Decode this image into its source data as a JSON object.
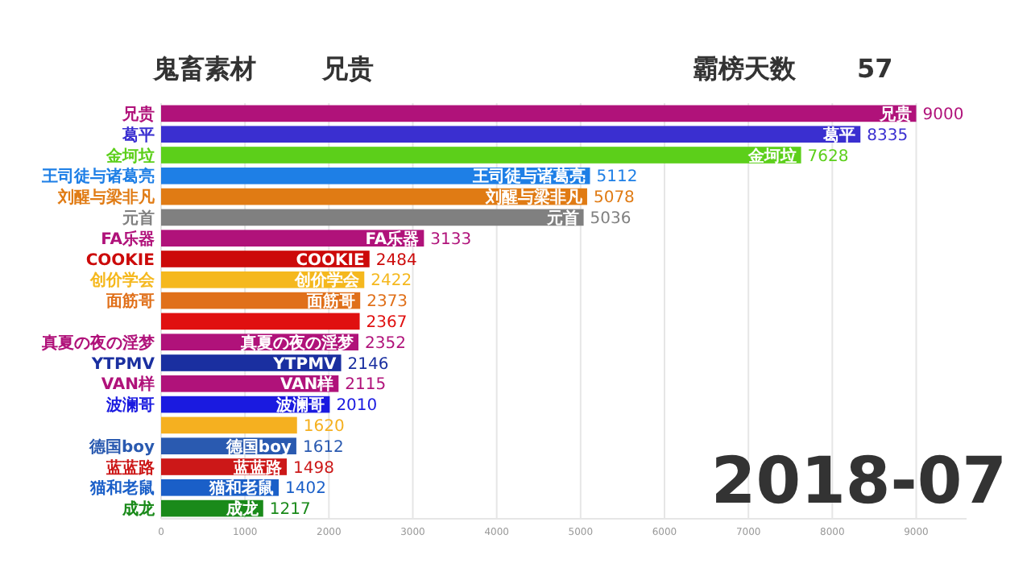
{
  "chart_data": {
    "type": "bar",
    "orientation": "horizontal",
    "title": "鬼畜素材",
    "subtitle": "兄贵",
    "annotations": [
      "霸榜天数",
      "57",
      "2018-07"
    ],
    "categories": [
      "兄贵",
      "葛平",
      "金坷垃",
      "王司徒与诸葛亮",
      "刘醒与梁非凡",
      "元首",
      "FA乐器",
      "COOKIE",
      "创价学会",
      "面筋哥",
      null,
      "真夏の夜の淫梦",
      "YTPMV",
      "VAN样",
      "波澜哥",
      null,
      "德国boy",
      "蓝蓝路",
      "猫和老鼠",
      "成龙"
    ],
    "values": [
      9000,
      8335,
      7628,
      5112,
      5078,
      5036,
      3133,
      2484,
      2422,
      2373,
      2367,
      2352,
      2146,
      2115,
      2010,
      1620,
      1612,
      1498,
      1402,
      1217
    ],
    "colors": [
      "#b0127a",
      "#3a2fd0",
      "#5ccf1a",
      "#1e7fe6",
      "#e07b14",
      "#808080",
      "#b0127a",
      "#cc0a0a",
      "#f5b81e",
      "#e0701a",
      "#e01010",
      "#b0127a",
      "#1a2fa0",
      "#b0127a",
      "#1a1ae0",
      "#f5b020",
      "#2a5ab0",
      "#cc1818",
      "#1a5fc8",
      "#1a8a1a"
    ],
    "xlim": [
      0,
      9600
    ],
    "xticks": [
      0,
      1000,
      2000,
      3000,
      4000,
      5000,
      6000,
      7000,
      8000,
      9000
    ],
    "grid": "x",
    "data_labels": true
  }
}
